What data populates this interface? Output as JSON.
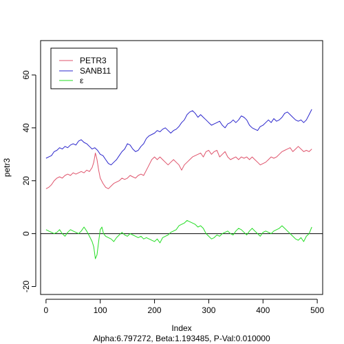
{
  "chart_data": {
    "type": "line",
    "xlabel": "Index",
    "ylabel": "petr3",
    "subtitle": "Alpha:6.797272, Beta:1.193485, P-Val:0.010000",
    "xlim": [
      -10,
      510
    ],
    "ylim": [
      -23,
      73
    ],
    "xticks": [
      0,
      100,
      200,
      300,
      400,
      500
    ],
    "yticks": [
      -20,
      0,
      20,
      40,
      60
    ],
    "reference_line_y": 0,
    "legend_position": "top-left",
    "series": [
      {
        "name": "PETR3",
        "color": "#DF536B",
        "points": [
          [
            0,
            17
          ],
          [
            5,
            17.5
          ],
          [
            10,
            18.5
          ],
          [
            15,
            20
          ],
          [
            20,
            21
          ],
          [
            25,
            21.5
          ],
          [
            30,
            21
          ],
          [
            35,
            22
          ],
          [
            40,
            22.5
          ],
          [
            45,
            22
          ],
          [
            50,
            23
          ],
          [
            55,
            22.5
          ],
          [
            60,
            23
          ],
          [
            65,
            23.5
          ],
          [
            70,
            23
          ],
          [
            75,
            24
          ],
          [
            80,
            23.5
          ],
          [
            85,
            25
          ],
          [
            88,
            27
          ],
          [
            91,
            30.5
          ],
          [
            94,
            28
          ],
          [
            97,
            24
          ],
          [
            100,
            21
          ],
          [
            105,
            19
          ],
          [
            110,
            17.5
          ],
          [
            115,
            17
          ],
          [
            120,
            18
          ],
          [
            125,
            19
          ],
          [
            130,
            19.5
          ],
          [
            135,
            20
          ],
          [
            140,
            21
          ],
          [
            145,
            20.5
          ],
          [
            150,
            21
          ],
          [
            155,
            22
          ],
          [
            160,
            21.5
          ],
          [
            165,
            21
          ],
          [
            170,
            22
          ],
          [
            175,
            22.5
          ],
          [
            180,
            22
          ],
          [
            185,
            24
          ],
          [
            190,
            26
          ],
          [
            195,
            28
          ],
          [
            200,
            29
          ],
          [
            205,
            28
          ],
          [
            210,
            29
          ],
          [
            215,
            28
          ],
          [
            220,
            27
          ],
          [
            225,
            26
          ],
          [
            230,
            27
          ],
          [
            235,
            28
          ],
          [
            240,
            27
          ],
          [
            245,
            26
          ],
          [
            250,
            24
          ],
          [
            255,
            26
          ],
          [
            260,
            27
          ],
          [
            265,
            28
          ],
          [
            270,
            29
          ],
          [
            275,
            29.5
          ],
          [
            280,
            30
          ],
          [
            285,
            30.5
          ],
          [
            290,
            29
          ],
          [
            295,
            31
          ],
          [
            300,
            31.5
          ],
          [
            305,
            30
          ],
          [
            310,
            31
          ],
          [
            315,
            31.5
          ],
          [
            320,
            29
          ],
          [
            325,
            30
          ],
          [
            330,
            31
          ],
          [
            335,
            29
          ],
          [
            340,
            28
          ],
          [
            345,
            28.5
          ],
          [
            350,
            29
          ],
          [
            355,
            28
          ],
          [
            360,
            29
          ],
          [
            365,
            28.5
          ],
          [
            370,
            29
          ],
          [
            375,
            28
          ],
          [
            380,
            29
          ],
          [
            385,
            28
          ],
          [
            390,
            27
          ],
          [
            395,
            26
          ],
          [
            400,
            26.5
          ],
          [
            405,
            27
          ],
          [
            410,
            28
          ],
          [
            415,
            29
          ],
          [
            420,
            28.5
          ],
          [
            425,
            29
          ],
          [
            430,
            30
          ],
          [
            435,
            31
          ],
          [
            440,
            31.5
          ],
          [
            445,
            32
          ],
          [
            450,
            32.5
          ],
          [
            455,
            31
          ],
          [
            460,
            32
          ],
          [
            465,
            33
          ],
          [
            470,
            32
          ],
          [
            475,
            31
          ],
          [
            480,
            31.5
          ],
          [
            485,
            31
          ],
          [
            490,
            32
          ]
        ]
      },
      {
        "name": "SANB11",
        "color": "#2A25CC",
        "points": [
          [
            0,
            28.5
          ],
          [
            5,
            29
          ],
          [
            10,
            29.5
          ],
          [
            15,
            31
          ],
          [
            20,
            31.5
          ],
          [
            25,
            32.5
          ],
          [
            30,
            32
          ],
          [
            35,
            33
          ],
          [
            40,
            32.5
          ],
          [
            45,
            33.5
          ],
          [
            50,
            34
          ],
          [
            55,
            33.5
          ],
          [
            60,
            35
          ],
          [
            65,
            35.5
          ],
          [
            70,
            34.5
          ],
          [
            75,
            34
          ],
          [
            80,
            33
          ],
          [
            85,
            32
          ],
          [
            90,
            32.5
          ],
          [
            95,
            31.5
          ],
          [
            100,
            30
          ],
          [
            105,
            29.5
          ],
          [
            110,
            28
          ],
          [
            115,
            26.5
          ],
          [
            120,
            26
          ],
          [
            125,
            27
          ],
          [
            130,
            28
          ],
          [
            135,
            29.5
          ],
          [
            140,
            31
          ],
          [
            145,
            32
          ],
          [
            150,
            34
          ],
          [
            155,
            33.5
          ],
          [
            160,
            32
          ],
          [
            165,
            31
          ],
          [
            170,
            31.5
          ],
          [
            175,
            33
          ],
          [
            180,
            34
          ],
          [
            185,
            36
          ],
          [
            190,
            37
          ],
          [
            195,
            37.5
          ],
          [
            200,
            38
          ],
          [
            205,
            39
          ],
          [
            210,
            38.5
          ],
          [
            215,
            39.5
          ],
          [
            220,
            40
          ],
          [
            225,
            39
          ],
          [
            230,
            38
          ],
          [
            235,
            39
          ],
          [
            240,
            39.5
          ],
          [
            245,
            40.5
          ],
          [
            250,
            42
          ],
          [
            255,
            43
          ],
          [
            260,
            45
          ],
          [
            265,
            46
          ],
          [
            270,
            46.5
          ],
          [
            275,
            45.5
          ],
          [
            280,
            44
          ],
          [
            285,
            45
          ],
          [
            290,
            44
          ],
          [
            295,
            43
          ],
          [
            300,
            42
          ],
          [
            305,
            41
          ],
          [
            310,
            41.5
          ],
          [
            315,
            42
          ],
          [
            320,
            42.5
          ],
          [
            325,
            41
          ],
          [
            330,
            40
          ],
          [
            335,
            41.5
          ],
          [
            340,
            42
          ],
          [
            345,
            43
          ],
          [
            350,
            42
          ],
          [
            355,
            43
          ],
          [
            360,
            44.5
          ],
          [
            365,
            44
          ],
          [
            370,
            43
          ],
          [
            375,
            41
          ],
          [
            380,
            40
          ],
          [
            385,
            39.5
          ],
          [
            390,
            39
          ],
          [
            395,
            40.5
          ],
          [
            400,
            41
          ],
          [
            405,
            42
          ],
          [
            410,
            43
          ],
          [
            415,
            42
          ],
          [
            420,
            43.5
          ],
          [
            425,
            42.5
          ],
          [
            430,
            43
          ],
          [
            435,
            44
          ],
          [
            440,
            45.5
          ],
          [
            445,
            46
          ],
          [
            450,
            45
          ],
          [
            455,
            44
          ],
          [
            460,
            43
          ],
          [
            465,
            42.5
          ],
          [
            470,
            43
          ],
          [
            475,
            42
          ],
          [
            480,
            43
          ],
          [
            485,
            45
          ],
          [
            490,
            47
          ]
        ]
      },
      {
        "name": "ε",
        "color": "#22DD22",
        "points": [
          [
            0,
            1.5
          ],
          [
            5,
            1
          ],
          [
            10,
            0.5
          ],
          [
            15,
            0
          ],
          [
            20,
            0.5
          ],
          [
            25,
            1.5
          ],
          [
            30,
            0
          ],
          [
            35,
            -1
          ],
          [
            40,
            0.5
          ],
          [
            45,
            1.5
          ],
          [
            50,
            1
          ],
          [
            55,
            0.5
          ],
          [
            60,
            0
          ],
          [
            65,
            1
          ],
          [
            70,
            2.5
          ],
          [
            75,
            1
          ],
          [
            80,
            -1
          ],
          [
            85,
            -3
          ],
          [
            88,
            -5
          ],
          [
            91,
            -9.5
          ],
          [
            94,
            -8
          ],
          [
            97,
            -3
          ],
          [
            100,
            1.5
          ],
          [
            103,
            2.5
          ],
          [
            106,
            0
          ],
          [
            110,
            -1
          ],
          [
            115,
            -1.5
          ],
          [
            120,
            -2
          ],
          [
            125,
            -3
          ],
          [
            130,
            -1.5
          ],
          [
            135,
            -0.5
          ],
          [
            140,
            0.5
          ],
          [
            145,
            -0.5
          ],
          [
            150,
            -1
          ],
          [
            155,
            0
          ],
          [
            160,
            -0.5
          ],
          [
            165,
            -1
          ],
          [
            170,
            -1.5
          ],
          [
            175,
            -1
          ],
          [
            180,
            -2
          ],
          [
            185,
            -1.5
          ],
          [
            190,
            -2
          ],
          [
            195,
            -2.5
          ],
          [
            200,
            -3
          ],
          [
            205,
            -2
          ],
          [
            210,
            -3.5
          ],
          [
            215,
            -1.5
          ],
          [
            220,
            -1
          ],
          [
            225,
            -0.5
          ],
          [
            230,
            0.5
          ],
          [
            235,
            1
          ],
          [
            240,
            1.5
          ],
          [
            245,
            3
          ],
          [
            250,
            3.5
          ],
          [
            255,
            4
          ],
          [
            260,
            5
          ],
          [
            265,
            4.5
          ],
          [
            270,
            4
          ],
          [
            275,
            3.5
          ],
          [
            280,
            2.5
          ],
          [
            285,
            3
          ],
          [
            290,
            2
          ],
          [
            295,
            0
          ],
          [
            300,
            -1
          ],
          [
            305,
            -2
          ],
          [
            310,
            -1.5
          ],
          [
            315,
            -0.5
          ],
          [
            320,
            -1
          ],
          [
            325,
            0
          ],
          [
            330,
            0.5
          ],
          [
            335,
            1
          ],
          [
            340,
            0
          ],
          [
            345,
            -0.5
          ],
          [
            350,
            1
          ],
          [
            355,
            2
          ],
          [
            360,
            1.5
          ],
          [
            365,
            0.5
          ],
          [
            370,
            -0.5
          ],
          [
            375,
            1
          ],
          [
            380,
            2
          ],
          [
            385,
            1
          ],
          [
            390,
            0
          ],
          [
            395,
            -1
          ],
          [
            400,
            0.5
          ],
          [
            405,
            1
          ],
          [
            410,
            0.5
          ],
          [
            415,
            0
          ],
          [
            420,
            1
          ],
          [
            425,
            1.5
          ],
          [
            430,
            2
          ],
          [
            435,
            3
          ],
          [
            440,
            2
          ],
          [
            445,
            1
          ],
          [
            450,
            0
          ],
          [
            455,
            -1
          ],
          [
            460,
            -2
          ],
          [
            465,
            -2.5
          ],
          [
            470,
            -1.5
          ],
          [
            475,
            -3
          ],
          [
            480,
            -1
          ],
          [
            485,
            0
          ],
          [
            490,
            2.5
          ]
        ]
      }
    ]
  }
}
